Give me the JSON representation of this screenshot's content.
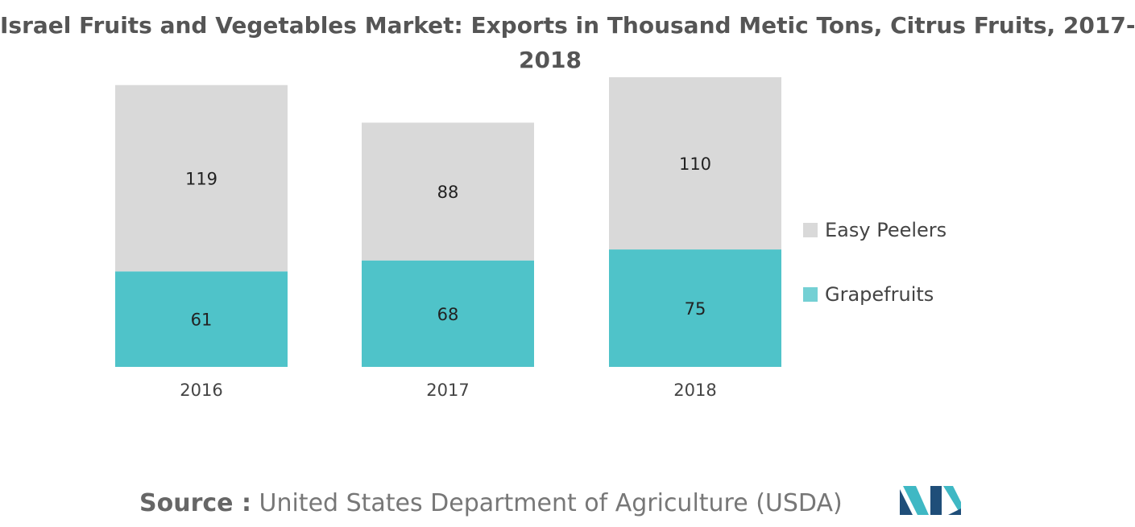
{
  "chart_data": {
    "type": "bar",
    "stacked": true,
    "title_lines": [
      "Israel Fruits and Vegetables Market: Exports in Thousand Metic Tons, Citrus Fruits, 2017-",
      "2018"
    ],
    "categories": [
      "2016",
      "2017",
      "2018"
    ],
    "series": [
      {
        "name": "Grapefruits",
        "values": [
          61,
          68,
          75
        ],
        "color": "#4fc3c9"
      },
      {
        "name": "Easy Peelers",
        "values": [
          119,
          88,
          110
        ],
        "color": "#d9d9d9"
      }
    ],
    "ylim": [
      0,
      185
    ],
    "grid": false,
    "legend_position": "right",
    "data_labels": true
  },
  "legend": [
    {
      "label": "Easy Peelers",
      "color": "#d9d9d9"
    },
    {
      "label": "Grapefruits",
      "color": "#74d0d4"
    }
  ],
  "source": {
    "label": "Source :",
    "text": "United States Department of Agriculture (USDA)"
  },
  "logo": {
    "icon": "mordor-intelligence-logo",
    "colors": [
      "#1f4e79",
      "#3fb8c4"
    ]
  }
}
